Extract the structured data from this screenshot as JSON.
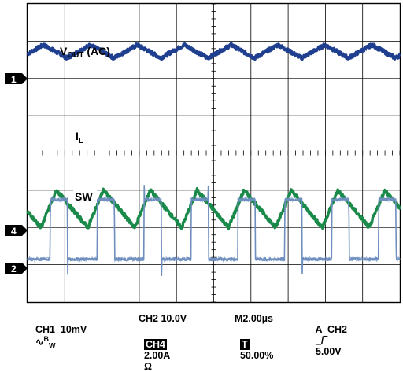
{
  "chart_data": {
    "type": "line",
    "title": "",
    "xlabel": "",
    "ylabel": "",
    "grid": true,
    "divisions": {
      "x": 10,
      "y": 8
    },
    "x": {
      "range_us": [
        0,
        20
      ],
      "unit": "µs"
    },
    "series": [
      {
        "name": "VOUT (AC)",
        "channel": "1",
        "color": "#1f3f8f",
        "waveform": "triangle-ripple",
        "period_us": 2.52,
        "peak_to_peak_div": 0.35,
        "offset_div": -0.35,
        "phase_us": 0.4,
        "noise_div": 0.05
      },
      {
        "name": "IL",
        "channel": "4",
        "color": "#1a8a4a",
        "waveform": "sawtooth",
        "period_us": 2.52,
        "peak_to_peak_div": 1.0,
        "offset_div": -0.4,
        "phase_us": 1.8,
        "noise_div": 0.05
      },
      {
        "name": "SW",
        "channel": "2",
        "color": "#6f8fbf",
        "waveform": "square",
        "period_us": 2.52,
        "duty": 0.37,
        "low_div": 0.0,
        "high_div": 1.6,
        "phase_us": 1.3,
        "spike_div": 0.8
      }
    ]
  },
  "labels": {
    "vout_main": "V",
    "vout_sub": "OUT",
    "vout_tail": " (AC)",
    "il_main": "I",
    "il_sub": "L",
    "sw": "SW"
  },
  "markers": {
    "ch1": "1",
    "ch4": "4",
    "ch2": "2"
  },
  "footer": {
    "ch1": "CH1  10mV",
    "bw_sup": "B",
    "bw_sub": "W",
    "ch2": "CH2 10.0V",
    "timebase": "M2.00µs",
    "trigger": "A  CH2",
    "trigger_level": "5.00V",
    "ch4_tag": "CH4",
    "ch4": "2.00A",
    "ohm": "Ω",
    "t_tag": "T",
    "t_pos": "50.00%"
  },
  "colors": {
    "grid": "#000000",
    "background": "#ffffff"
  }
}
